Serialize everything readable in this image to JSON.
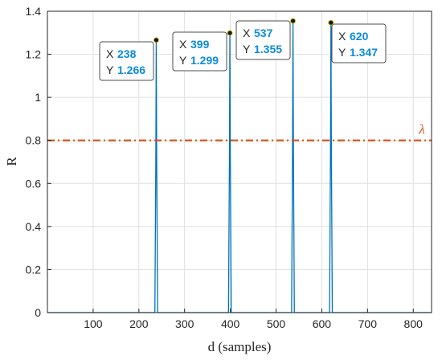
{
  "chart_data": {
    "type": "line",
    "xlabel": "d (samples)",
    "ylabel": "R",
    "xlim": [
      0,
      840
    ],
    "ylim": [
      0,
      1.4
    ],
    "x_ticks": [
      100,
      200,
      300,
      400,
      500,
      600,
      700,
      800
    ],
    "y_ticks": [
      0,
      0.2,
      0.4,
      0.6,
      0.8,
      1,
      1.2,
      1.4
    ],
    "grid": true,
    "series": [
      {
        "color": "#0072bd",
        "baseline": 0,
        "peaks": [
          {
            "x": 238,
            "y": 1.266
          },
          {
            "x": 399,
            "y": 1.299
          },
          {
            "x": 537,
            "y": 1.355
          },
          {
            "x": 620,
            "y": 1.347
          }
        ]
      }
    ],
    "threshold": {
      "y": 0.8,
      "label": "λ",
      "color": "#d95319",
      "style": "dash-dot"
    },
    "datatips": [
      {
        "x_label": "X",
        "x": "238",
        "y_label": "Y",
        "y": "1.266"
      },
      {
        "x_label": "X",
        "x": "399",
        "y_label": "Y",
        "y": "1.299"
      },
      {
        "x_label": "X",
        "x": "537",
        "y_label": "Y",
        "y": "1.355"
      },
      {
        "x_label": "X",
        "x": "620",
        "y_label": "Y",
        "y": "1.347"
      }
    ]
  }
}
